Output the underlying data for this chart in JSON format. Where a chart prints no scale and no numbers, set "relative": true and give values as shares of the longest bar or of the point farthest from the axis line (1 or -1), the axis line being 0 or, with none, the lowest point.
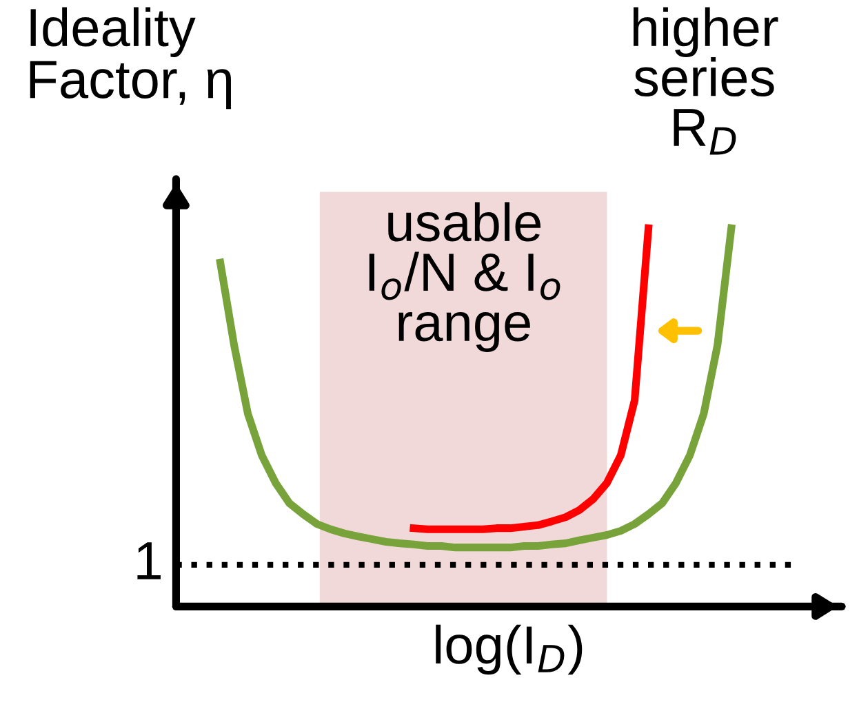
{
  "chart_data": {
    "type": "line",
    "relative": true,
    "ylabel": "Ideality\nFactor, η",
    "xlabel": "log(I$_{D}$)",
    "categories": [
      null,
      null,
      null,
      null,
      null,
      null,
      null,
      null,
      null,
      null,
      null,
      null,
      null,
      null,
      null,
      null,
      null,
      null,
      null,
      null,
      null,
      null,
      null,
      null,
      null,
      null,
      null,
      null,
      null,
      null,
      null,
      null,
      null,
      null,
      null,
      null,
      null,
      null,
      null,
      null,
      null,
      null,
      null,
      null,
      null,
      null,
      null,
      null
    ],
    "series": [
      {
        "color": "#77a33a",
        "values": [
          null,
          null,
          null,
          0.909,
          0.691,
          0.509,
          0.4,
          0.327,
          0.273,
          0.244,
          0.218,
          0.204,
          0.193,
          0.185,
          0.178,
          0.171,
          0.167,
          0.164,
          0.16,
          0.16,
          0.156,
          0.156,
          0.156,
          0.156,
          0.156,
          0.16,
          0.16,
          0.164,
          0.167,
          0.175,
          0.182,
          0.189,
          0.2,
          0.218,
          0.244,
          0.273,
          0.327,
          0.4,
          0.509,
          0.691,
          1.0,
          null,
          null,
          null,
          null,
          null,
          null,
          null
        ]
      },
      {
        "color": "#ff0000",
        "values": [
          null,
          null,
          null,
          null,
          null,
          null,
          null,
          null,
          null,
          null,
          null,
          null,
          null,
          null,
          null,
          null,
          null,
          0.207,
          0.204,
          0.204,
          0.204,
          0.204,
          0.204,
          0.207,
          0.207,
          0.211,
          0.215,
          0.225,
          0.236,
          0.255,
          0.284,
          0.327,
          0.4,
          0.545,
          1.0,
          null,
          null,
          null,
          null,
          null,
          null,
          null,
          null,
          null,
          null,
          null,
          null,
          null
        ]
      }
    ],
    "ref_lines": [
      {
        "axis": "y",
        "value": 0.11,
        "color": "#000000",
        "line_style": "dotted"
      }
    ],
    "annotations": [
      "1",
      "usable\nI$_{o}$/N & I$_{o}$\nrange",
      "higher\nseries\nR$_{D}$"
    ],
    "legend": false,
    "grid": false,
    "marker": "none",
    "line_style": "solid"
  }
}
